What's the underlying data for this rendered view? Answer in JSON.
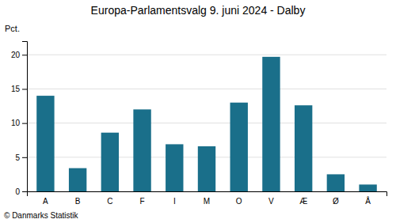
{
  "chart_data": {
    "type": "bar",
    "title": "Europa-Parlamentsvalg 9. juni 2024 - Dalby",
    "categories": [
      "A",
      "B",
      "C",
      "F",
      "I",
      "M",
      "O",
      "V",
      "Æ",
      "Ø",
      "Å"
    ],
    "values": [
      14.0,
      3.4,
      8.6,
      12.0,
      6.9,
      6.6,
      13.0,
      19.7,
      12.6,
      2.5,
      1.0
    ],
    "color": "#1a6f8a",
    "ylabel": "Pct.",
    "ylim": [
      0,
      22
    ],
    "yticks": [
      0,
      5,
      10,
      15,
      20
    ],
    "grid": true,
    "annotations": [
      "© Danmarks Statistik"
    ]
  }
}
